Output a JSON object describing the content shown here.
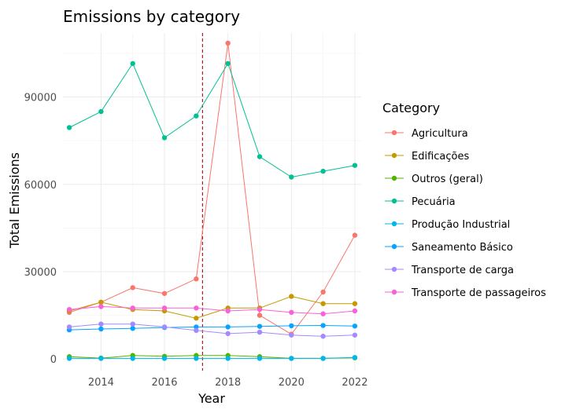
{
  "chart_data": {
    "type": "line",
    "title": "Emissions by category",
    "xlabel": "Year",
    "ylabel": "Total Emissions",
    "x": [
      2013,
      2014,
      2015,
      2016,
      2017,
      2018,
      2019,
      2020,
      2021,
      2022
    ],
    "xlim": [
      2012.8,
      2022.2
    ],
    "ylim": [
      -4000,
      112000
    ],
    "x_ticks": [
      2014,
      2016,
      2018,
      2020,
      2022
    ],
    "y_ticks": [
      0,
      30000,
      60000,
      90000
    ],
    "y_tick_labels": [
      "0",
      "30000",
      "60000",
      "90000"
    ],
    "grid": true,
    "reference_line": {
      "x": 2017.2,
      "color": "#b2182b",
      "style": "dashed"
    },
    "legend": {
      "title": "Category",
      "placement": "right"
    },
    "series": [
      {
        "name": "Agricultura",
        "color": "#F8766D",
        "values": [
          16000,
          19500,
          24500,
          22500,
          27500,
          108500,
          15000,
          8500,
          23000,
          42500
        ]
      },
      {
        "name": "Edificações",
        "color": "#C49A00",
        "values": [
          16500,
          19500,
          17000,
          16500,
          14000,
          17500,
          17500,
          21500,
          19000,
          19000
        ]
      },
      {
        "name": "Outros (geral)",
        "color": "#53B400",
        "values": [
          800,
          300,
          1200,
          900,
          1200,
          1200,
          800,
          200,
          200,
          400
        ]
      },
      {
        "name": "Pecuária",
        "color": "#00C094",
        "values": [
          79500,
          85000,
          101500,
          76000,
          83500,
          101500,
          69500,
          62500,
          64500,
          66500
        ]
      },
      {
        "name": "Produção Industrial",
        "color": "#00B6EB",
        "values": [
          200,
          200,
          200,
          200,
          200,
          200,
          200,
          200,
          200,
          500
        ]
      },
      {
        "name": "Saneamento Básico",
        "color": "#06A4FF",
        "values": [
          10000,
          10300,
          10500,
          10800,
          11000,
          11000,
          11200,
          11400,
          11500,
          11300
        ]
      },
      {
        "name": "Transporte de carga",
        "color": "#A58AFF",
        "values": [
          11000,
          12000,
          12000,
          11000,
          9800,
          8700,
          9200,
          8200,
          7800,
          8200
        ]
      },
      {
        "name": "Transporte de passageiros",
        "color": "#FB61D7",
        "values": [
          17000,
          18000,
          17500,
          17500,
          17500,
          16500,
          17000,
          16000,
          15500,
          16500
        ]
      }
    ]
  }
}
